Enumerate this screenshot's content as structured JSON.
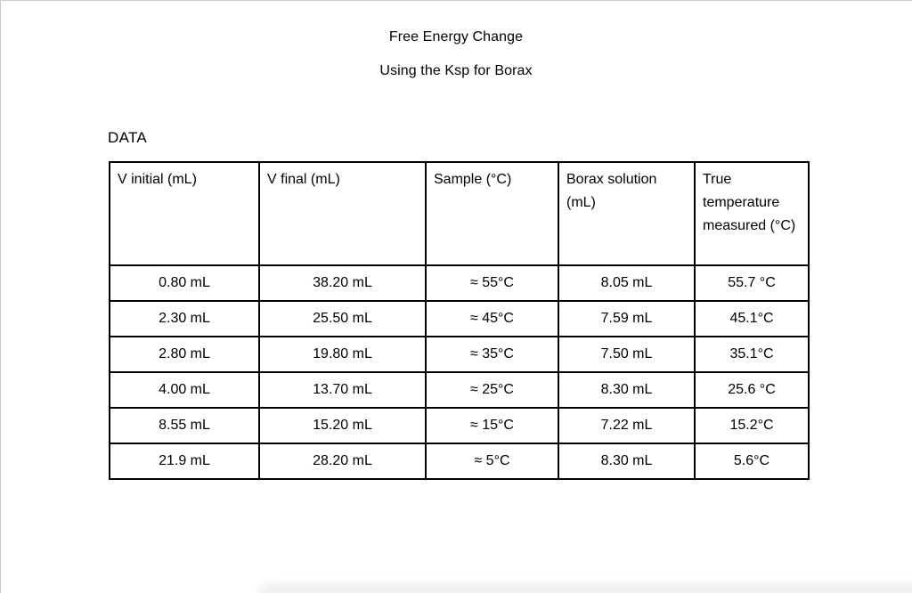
{
  "document": {
    "title_line1": "Free Energy Change",
    "title_line2": "Using the Ksp for Borax",
    "section_label": "DATA"
  },
  "table": {
    "headers": [
      "V initial (mL)",
      "V final (mL)",
      "Sample (°C)",
      "Borax solution (mL)",
      "True temperature measured (°C)"
    ],
    "rows": [
      [
        "0.80 mL",
        "38.20 mL",
        "≈ 55°C",
        "8.05 mL",
        "55.7 °C"
      ],
      [
        "2.30 mL",
        "25.50 mL",
        "≈ 45°C",
        "7.59 mL",
        "45.1°C"
      ],
      [
        "2.80 mL",
        "19.80 mL",
        "≈ 35°C",
        "7.50 mL",
        "35.1°C"
      ],
      [
        "4.00 mL",
        "13.70 mL",
        "≈ 25°C",
        "8.30 mL",
        "25.6 °C"
      ],
      [
        "8.55 mL",
        "15.20 mL",
        "≈ 15°C",
        "7.22 mL",
        "15.2°C"
      ],
      [
        "21.9 mL",
        "28.20 mL",
        "≈ 5°C",
        "8.30 mL",
        "5.6°C"
      ]
    ]
  },
  "colors": {
    "background": "#ffffff",
    "text": "#000000",
    "table_border": "#000000",
    "window_edge": "#c9c9c9"
  }
}
